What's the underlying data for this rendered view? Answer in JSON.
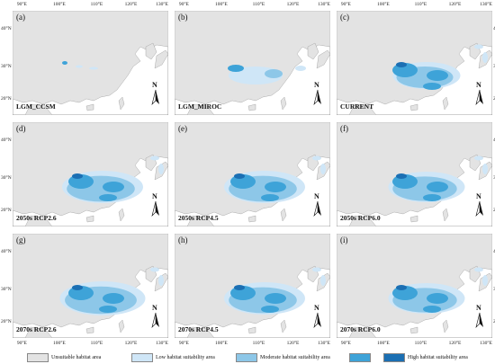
{
  "colors": {
    "unsuitable": "#e3e3e3",
    "low": "#cfe6f7",
    "moderate": "#8dc7e8",
    "good": "#3ea3d8",
    "high": "#1b6fb3",
    "sea": "#ffffff",
    "border": "#9a9a9a"
  },
  "axes": {
    "x_ticks": [
      "90°E",
      "100°E",
      "110°E",
      "120°E",
      "130°E"
    ],
    "y_ticks": [
      "40°N",
      "30°N",
      "20°N"
    ]
  },
  "panels": [
    {
      "letter": "(a)",
      "scenario": "LGM_CCSM",
      "suitability": 0.05
    },
    {
      "letter": "(b)",
      "scenario": "LGM_MIROC",
      "suitability": 0.35
    },
    {
      "letter": "(c)",
      "scenario": "CURRENT",
      "suitability": 0.75
    },
    {
      "letter": "(d)",
      "scenario": "2050s RCP2.6",
      "suitability": 0.9
    },
    {
      "letter": "(e)",
      "scenario": "2050s RCP4.5",
      "suitability": 0.9
    },
    {
      "letter": "(f)",
      "scenario": "2050s RCP6.0",
      "suitability": 0.85
    },
    {
      "letter": "(g)",
      "scenario": "2070s RCP2.6",
      "suitability": 0.95
    },
    {
      "letter": "(h)",
      "scenario": "2070s RCP4.5",
      "suitability": 0.9
    },
    {
      "letter": "(i)",
      "scenario": "2070s RCP6.0",
      "suitability": 0.85
    }
  ],
  "north_arrow": "N",
  "legend": [
    {
      "label": "Unsuitable habitat area",
      "color": "#e3e3e3"
    },
    {
      "label": "Low habitat suitability area",
      "color": "#cfe6f7"
    },
    {
      "label": "Moderate habitat suitability area",
      "color": "#8dc7e8"
    },
    {
      "label": "",
      "color": "#3ea3d8"
    },
    {
      "label": "High habitat suitability area",
      "color": "#1b6fb3"
    }
  ]
}
